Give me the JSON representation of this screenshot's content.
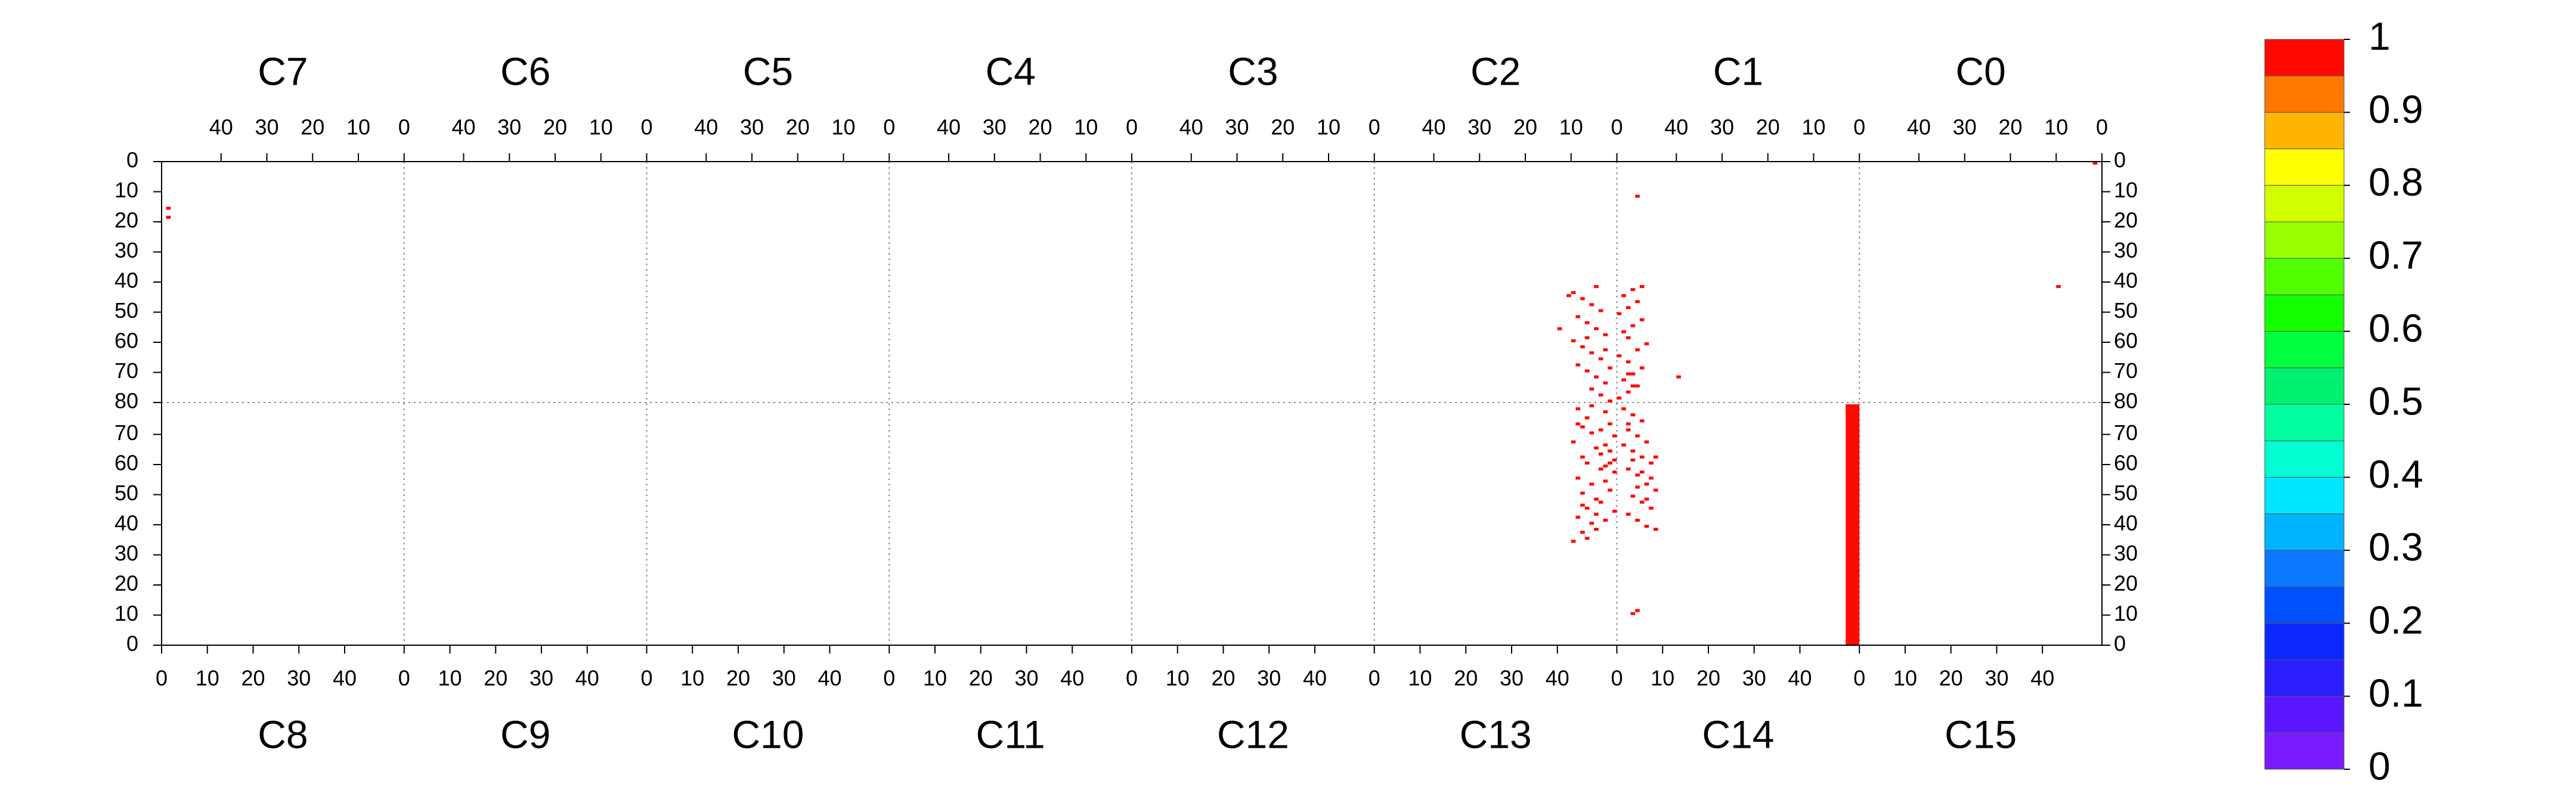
{
  "chart_data": {
    "type": "heatmap",
    "xlim": [
      0,
      53
    ],
    "xticks": [
      0,
      10,
      20,
      30,
      40
    ],
    "ylim": [
      0,
      80
    ],
    "yticks": [
      0,
      10,
      20,
      30,
      40,
      50,
      60,
      70,
      80
    ],
    "top_row": [
      {
        "label": "C7",
        "hits": [
          {
            "col": 51,
            "row": 15,
            "value": 1
          },
          {
            "col": 51,
            "row": 18,
            "value": 1
          }
        ]
      },
      {
        "label": "C6",
        "hits": []
      },
      {
        "label": "C5",
        "hits": []
      },
      {
        "label": "C4",
        "hits": []
      },
      {
        "label": "C3",
        "hits": []
      },
      {
        "label": "C2",
        "hits": [
          {
            "col": 1,
            "row": 79,
            "value": 1
          },
          {
            "col": 3,
            "row": 77,
            "value": 1
          },
          {
            "col": 5,
            "row": 75,
            "value": 1
          },
          {
            "col": 2,
            "row": 73,
            "value": 1
          },
          {
            "col": 4,
            "row": 71,
            "value": 1
          },
          {
            "col": 6,
            "row": 69,
            "value": 1
          },
          {
            "col": 8,
            "row": 67,
            "value": 1
          },
          {
            "col": 3,
            "row": 65,
            "value": 1
          },
          {
            "col": 5,
            "row": 63,
            "value": 1
          },
          {
            "col": 7,
            "row": 61,
            "value": 1
          },
          {
            "col": 9,
            "row": 59,
            "value": 1
          },
          {
            "col": 2,
            "row": 57,
            "value": 1
          },
          {
            "col": 4,
            "row": 55,
            "value": 1
          },
          {
            "col": 6,
            "row": 53,
            "value": 1
          },
          {
            "col": 8,
            "row": 51,
            "value": 1
          },
          {
            "col": 3,
            "row": 49,
            "value": 1
          },
          {
            "col": 5,
            "row": 47,
            "value": 1
          },
          {
            "col": 7,
            "row": 45,
            "value": 1
          },
          {
            "col": 9,
            "row": 43,
            "value": 1
          },
          {
            "col": 4,
            "row": 41,
            "value": 1
          },
          {
            "col": 10,
            "row": 44,
            "value": 1
          },
          {
            "col": 1,
            "row": 68,
            "value": 1
          },
          {
            "col": 6,
            "row": 58,
            "value": 1
          },
          {
            "col": 2,
            "row": 62,
            "value": 1
          },
          {
            "col": 12,
            "row": 55,
            "value": 1
          }
        ]
      },
      {
        "label": "C1",
        "hits": [
          {
            "col": 52,
            "row": 78,
            "value": 1
          },
          {
            "col": 50,
            "row": 76,
            "value": 1
          },
          {
            "col": 48,
            "row": 74,
            "value": 1
          },
          {
            "col": 51,
            "row": 72,
            "value": 1
          },
          {
            "col": 49,
            "row": 70,
            "value": 1
          },
          {
            "col": 47,
            "row": 68,
            "value": 1
          },
          {
            "col": 50,
            "row": 66,
            "value": 1
          },
          {
            "col": 52,
            "row": 64,
            "value": 1
          },
          {
            "col": 48,
            "row": 62,
            "value": 1
          },
          {
            "col": 46,
            "row": 60,
            "value": 1
          },
          {
            "col": 50,
            "row": 58,
            "value": 1
          },
          {
            "col": 51,
            "row": 56,
            "value": 1
          },
          {
            "col": 49,
            "row": 54,
            "value": 1
          },
          {
            "col": 47,
            "row": 52,
            "value": 1
          },
          {
            "col": 52,
            "row": 50,
            "value": 1
          },
          {
            "col": 50,
            "row": 48,
            "value": 1
          },
          {
            "col": 48,
            "row": 46,
            "value": 1
          },
          {
            "col": 51,
            "row": 44,
            "value": 1
          },
          {
            "col": 49,
            "row": 42,
            "value": 1
          },
          {
            "col": 47,
            "row": 41,
            "value": 1
          },
          {
            "col": 50,
            "row": 70,
            "value": 1
          },
          {
            "col": 49,
            "row": 74,
            "value": 1
          },
          {
            "col": 48,
            "row": 11,
            "value": 1
          },
          {
            "col": 39,
            "row": 71,
            "value": 1
          }
        ]
      },
      {
        "label": "C0",
        "hits": [
          {
            "col": 9,
            "row": 41,
            "value": 1
          },
          {
            "col": 1,
            "row": 0,
            "value": 1
          }
        ]
      }
    ],
    "bottom_row": [
      {
        "label": "C8",
        "hits": []
      },
      {
        "label": "C9",
        "hits": []
      },
      {
        "label": "C10",
        "hits": []
      },
      {
        "label": "C11",
        "hits": []
      },
      {
        "label": "C12",
        "hits": []
      },
      {
        "label": "C13",
        "hits": [
          {
            "col": 44,
            "row": 78,
            "value": 1
          },
          {
            "col": 46,
            "row": 75,
            "value": 1
          },
          {
            "col": 45,
            "row": 72,
            "value": 1
          },
          {
            "col": 47,
            "row": 70,
            "value": 1
          },
          {
            "col": 43,
            "row": 67,
            "value": 1
          },
          {
            "col": 48,
            "row": 65,
            "value": 1
          },
          {
            "col": 45,
            "row": 62,
            "value": 1
          },
          {
            "col": 46,
            "row": 60,
            "value": 1
          },
          {
            "col": 49,
            "row": 58,
            "value": 1
          },
          {
            "col": 44,
            "row": 55,
            "value": 1
          },
          {
            "col": 47,
            "row": 53,
            "value": 1
          },
          {
            "col": 45,
            "row": 50,
            "value": 1
          },
          {
            "col": 48,
            "row": 48,
            "value": 1
          },
          {
            "col": 46,
            "row": 45,
            "value": 1
          },
          {
            "col": 44,
            "row": 42,
            "value": 1
          },
          {
            "col": 47,
            "row": 40,
            "value": 1
          },
          {
            "col": 45,
            "row": 37,
            "value": 1
          },
          {
            "col": 43,
            "row": 34,
            "value": 1
          },
          {
            "col": 50,
            "row": 77,
            "value": 1
          },
          {
            "col": 51,
            "row": 73,
            "value": 1
          },
          {
            "col": 52,
            "row": 69,
            "value": 1
          },
          {
            "col": 50,
            "row": 66,
            "value": 1
          },
          {
            "col": 49,
            "row": 63,
            "value": 1
          },
          {
            "col": 51,
            "row": 60,
            "value": 1
          },
          {
            "col": 52,
            "row": 57,
            "value": 1
          },
          {
            "col": 50,
            "row": 54,
            "value": 1
          },
          {
            "col": 51,
            "row": 51,
            "value": 1
          },
          {
            "col": 49,
            "row": 47,
            "value": 1
          },
          {
            "col": 52,
            "row": 44,
            "value": 1
          },
          {
            "col": 50,
            "row": 41,
            "value": 1
          },
          {
            "col": 48,
            "row": 38,
            "value": 1
          },
          {
            "col": 46,
            "row": 35,
            "value": 1
          },
          {
            "col": 44,
            "row": 73,
            "value": 1
          },
          {
            "col": 47,
            "row": 79,
            "value": 1
          },
          {
            "col": 49,
            "row": 71,
            "value": 1
          },
          {
            "col": 51,
            "row": 64,
            "value": 1
          },
          {
            "col": 52,
            "row": 61,
            "value": 1
          },
          {
            "col": 50,
            "row": 59,
            "value": 1
          },
          {
            "col": 45,
            "row": 46,
            "value": 1
          },
          {
            "col": 48,
            "row": 43,
            "value": 1
          }
        ]
      },
      {
        "label": "C14",
        "hits": [
          {
            "col": 1,
            "row": 78,
            "value": 1
          },
          {
            "col": 3,
            "row": 76,
            "value": 1
          },
          {
            "col": 5,
            "row": 74,
            "value": 1
          },
          {
            "col": 2,
            "row": 71,
            "value": 1
          },
          {
            "col": 4,
            "row": 69,
            "value": 1
          },
          {
            "col": 6,
            "row": 67,
            "value": 1
          },
          {
            "col": 3,
            "row": 64,
            "value": 1
          },
          {
            "col": 5,
            "row": 62,
            "value": 1
          },
          {
            "col": 7,
            "row": 60,
            "value": 1
          },
          {
            "col": 2,
            "row": 58,
            "value": 1
          },
          {
            "col": 4,
            "row": 56,
            "value": 1
          },
          {
            "col": 6,
            "row": 53,
            "value": 1
          },
          {
            "col": 8,
            "row": 51,
            "value": 1
          },
          {
            "col": 3,
            "row": 49,
            "value": 1
          },
          {
            "col": 5,
            "row": 47,
            "value": 1
          },
          {
            "col": 7,
            "row": 45,
            "value": 1
          },
          {
            "col": 2,
            "row": 43,
            "value": 1
          },
          {
            "col": 4,
            "row": 41,
            "value": 1
          },
          {
            "col": 6,
            "row": 39,
            "value": 1
          },
          {
            "col": 8,
            "row": 38,
            "value": 1
          },
          {
            "col": 1,
            "row": 66,
            "value": 1
          },
          {
            "col": 3,
            "row": 61,
            "value": 1
          },
          {
            "col": 5,
            "row": 57,
            "value": 1
          },
          {
            "col": 7,
            "row": 55,
            "value": 1
          },
          {
            "col": 4,
            "row": 52,
            "value": 1
          },
          {
            "col": 6,
            "row": 48,
            "value": 1
          },
          {
            "col": 8,
            "row": 62,
            "value": 1
          },
          {
            "col": 2,
            "row": 73,
            "value": 1
          },
          {
            "col": 4,
            "row": 11,
            "value": 1
          },
          {
            "col": 3,
            "row": 10,
            "value": 1
          }
        ],
        "blocks": [
          {
            "cols": [
              50,
              53
            ],
            "rows": [
              0,
              80
            ],
            "value": 1
          }
        ]
      },
      {
        "label": "C15",
        "hits": []
      }
    ],
    "colorbar": {
      "ylim": [
        0,
        1
      ],
      "yticks": [
        0,
        0.1,
        0.2,
        0.3,
        0.4,
        0.5,
        0.6,
        0.7,
        0.8,
        0.9,
        1
      ],
      "colors": [
        "#7a1aff",
        "#5a17ff",
        "#2a1eff",
        "#0a28ff",
        "#0050ff",
        "#0a78ff",
        "#00b4ff",
        "#00e6ff",
        "#00ffd2",
        "#00ffa0",
        "#00f070",
        "#00ff3c",
        "#14ff00",
        "#50ff00",
        "#96ff00",
        "#d2ff00",
        "#ffff00",
        "#ffb400",
        "#ff7800",
        "#ff0a00"
      ]
    }
  }
}
